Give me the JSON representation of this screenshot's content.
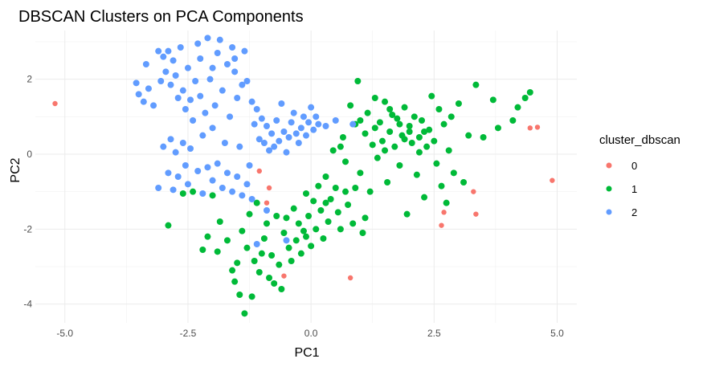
{
  "chart_data": {
    "type": "scatter",
    "title": "DBSCAN Clusters on PCA Components",
    "xlabel": "PC1",
    "ylabel": "PC2",
    "xlim": [
      -5.6,
      5.4
    ],
    "ylim": [
      -4.5,
      3.3
    ],
    "x_ticks": [
      -5.0,
      -2.5,
      0.0,
      2.5,
      5.0
    ],
    "x_tick_labels": [
      "-5.0",
      "-2.5",
      "0.0",
      "2.5",
      "5.0"
    ],
    "y_ticks": [
      -4,
      -2,
      0,
      2
    ],
    "y_tick_labels": [
      "-4",
      "-2",
      "0",
      "2"
    ],
    "grid": true,
    "legend": {
      "title": "cluster_dbscan",
      "position": "right"
    },
    "series": [
      {
        "name": "0",
        "color": "#F8766D",
        "points": [
          [
            -5.2,
            1.35
          ],
          [
            -1.05,
            -0.45
          ],
          [
            -0.85,
            -0.9
          ],
          [
            -0.9,
            -1.3
          ],
          [
            -0.55,
            -3.25
          ],
          [
            0.8,
            -3.3
          ],
          [
            2.65,
            -1.9
          ],
          [
            2.7,
            -1.55
          ],
          [
            3.3,
            -1.0
          ],
          [
            3.35,
            -1.6
          ],
          [
            4.45,
            0.7
          ],
          [
            4.6,
            0.72
          ],
          [
            4.9,
            -0.7
          ]
        ]
      },
      {
        "name": "1",
        "color": "#00BA38",
        "points": [
          [
            -2.9,
            -1.9
          ],
          [
            -2.6,
            -1.05
          ],
          [
            -2.4,
            -1.0
          ],
          [
            -2.2,
            -2.55
          ],
          [
            -2.1,
            -2.2
          ],
          [
            -2.0,
            -1.1
          ],
          [
            -1.9,
            -2.6
          ],
          [
            -1.85,
            -1.8
          ],
          [
            -1.7,
            -2.3
          ],
          [
            -1.6,
            -3.1
          ],
          [
            -1.55,
            -3.4
          ],
          [
            -1.5,
            -2.9
          ],
          [
            -1.45,
            -3.75
          ],
          [
            -1.4,
            -2.05
          ],
          [
            -1.35,
            -4.25
          ],
          [
            -1.3,
            -2.5
          ],
          [
            -1.25,
            -1.6
          ],
          [
            -1.2,
            -3.8
          ],
          [
            -1.15,
            -2.85
          ],
          [
            -1.1,
            -1.3
          ],
          [
            -1.05,
            -3.15
          ],
          [
            -1.0,
            -2.65
          ],
          [
            -0.95,
            -2.25
          ],
          [
            -0.9,
            -1.85
          ],
          [
            -0.85,
            -3.3
          ],
          [
            -0.8,
            -2.7
          ],
          [
            -0.75,
            -3.45
          ],
          [
            -0.7,
            -1.65
          ],
          [
            -0.65,
            -2.95
          ],
          [
            -0.6,
            -3.6
          ],
          [
            -0.55,
            -2.1
          ],
          [
            -0.5,
            -1.7
          ],
          [
            -0.45,
            -2.5
          ],
          [
            -0.4,
            -2.85
          ],
          [
            -0.35,
            -1.45
          ],
          [
            -0.3,
            -2.3
          ],
          [
            -0.25,
            -1.85
          ],
          [
            -0.2,
            -2.65
          ],
          [
            -0.15,
            -2.05
          ],
          [
            -0.1,
            -1.05
          ],
          [
            -0.05,
            -1.65
          ],
          [
            0.0,
            -2.45
          ],
          [
            0.05,
            -1.25
          ],
          [
            0.1,
            -2.0
          ],
          [
            0.15,
            -0.85
          ],
          [
            0.2,
            -1.5
          ],
          [
            0.25,
            -2.25
          ],
          [
            0.3,
            -0.6
          ],
          [
            0.35,
            -1.8
          ],
          [
            0.4,
            -1.2
          ],
          [
            0.45,
            0.1
          ],
          [
            0.5,
            -0.9
          ],
          [
            0.55,
            -1.55
          ],
          [
            0.6,
            -2.0
          ],
          [
            0.65,
            0.45
          ],
          [
            0.7,
            -0.2
          ],
          [
            0.75,
            -1.35
          ],
          [
            0.8,
            1.3
          ],
          [
            0.85,
            -1.85
          ],
          [
            0.9,
            0.8
          ],
          [
            0.95,
            1.95
          ],
          [
            1.0,
            -0.5
          ],
          [
            1.05,
            -2.1
          ],
          [
            1.1,
            0.55
          ],
          [
            1.15,
            1.1
          ],
          [
            1.2,
            -1.0
          ],
          [
            1.25,
            0.25
          ],
          [
            1.3,
            1.5
          ],
          [
            1.35,
            -0.1
          ],
          [
            1.4,
            0.85
          ],
          [
            1.45,
            0.35
          ],
          [
            1.5,
            1.4
          ],
          [
            1.55,
            -0.75
          ],
          [
            1.6,
            0.6
          ],
          [
            1.65,
            1.05
          ],
          [
            1.7,
            0.2
          ],
          [
            1.75,
            0.95
          ],
          [
            1.8,
            -0.3
          ],
          [
            1.85,
            0.5
          ],
          [
            1.9,
            1.25
          ],
          [
            1.95,
            -1.6
          ],
          [
            2.0,
            0.75
          ],
          [
            2.05,
            0.3
          ],
          [
            2.1,
            1.0
          ],
          [
            2.15,
            -0.55
          ],
          [
            2.2,
            0.45
          ],
          [
            2.25,
            0.9
          ],
          [
            2.3,
            -1.15
          ],
          [
            2.35,
            0.2
          ],
          [
            2.4,
            0.65
          ],
          [
            2.45,
            1.55
          ],
          [
            2.5,
            0.35
          ],
          [
            2.55,
            -0.25
          ],
          [
            2.6,
            1.2
          ],
          [
            2.65,
            -0.85
          ],
          [
            2.7,
            0.8
          ],
          [
            2.75,
            -1.3
          ],
          [
            2.8,
            0.1
          ],
          [
            2.85,
            1.0
          ],
          [
            2.9,
            -0.5
          ],
          [
            3.0,
            1.35
          ],
          [
            3.1,
            -0.75
          ],
          [
            3.2,
            0.5
          ],
          [
            3.35,
            1.85
          ],
          [
            3.5,
            0.45
          ],
          [
            3.7,
            1.45
          ],
          [
            3.8,
            0.7
          ],
          [
            4.1,
            0.9
          ],
          [
            4.2,
            1.25
          ],
          [
            4.35,
            1.5
          ],
          [
            4.45,
            1.65
          ],
          [
            0.6,
            0.2
          ],
          [
            1.0,
            0.9
          ],
          [
            1.3,
            0.7
          ],
          [
            1.6,
            1.2
          ],
          [
            1.9,
            0.4
          ],
          [
            2.2,
            0.05
          ],
          [
            2.0,
            0.6
          ],
          [
            1.8,
            0.8
          ],
          [
            2.3,
            0.6
          ],
          [
            1.5,
            0.1
          ],
          [
            0.7,
            -1.0
          ],
          [
            0.3,
            -1.3
          ],
          [
            -0.1,
            -2.2
          ],
          [
            1.1,
            -1.7
          ],
          [
            0.9,
            -0.9
          ]
        ]
      },
      {
        "name": "2",
        "color": "#619CFF",
        "points": [
          [
            -3.55,
            1.9
          ],
          [
            -3.5,
            1.6
          ],
          [
            -3.4,
            1.4
          ],
          [
            -3.3,
            1.75
          ],
          [
            -3.2,
            1.3
          ],
          [
            -3.1,
            2.75
          ],
          [
            -3.05,
            1.95
          ],
          [
            -3.0,
            2.6
          ],
          [
            -2.95,
            2.2
          ],
          [
            -2.9,
            2.75
          ],
          [
            -2.85,
            1.85
          ],
          [
            -2.8,
            2.5
          ],
          [
            -2.75,
            2.1
          ],
          [
            -2.7,
            1.5
          ],
          [
            -2.65,
            2.85
          ],
          [
            -2.6,
            1.7
          ],
          [
            -2.55,
            1.2
          ],
          [
            -2.5,
            2.3
          ],
          [
            -2.45,
            1.45
          ],
          [
            -2.4,
            0.9
          ],
          [
            -2.35,
            1.95
          ],
          [
            -2.3,
            2.95
          ],
          [
            -2.25,
            1.55
          ],
          [
            -2.2,
            0.5
          ],
          [
            -2.15,
            1.1
          ],
          [
            -2.1,
            3.1
          ],
          [
            -2.05,
            2.0
          ],
          [
            -2.0,
            0.7
          ],
          [
            -1.95,
            1.3
          ],
          [
            -1.9,
            2.7
          ],
          [
            -1.85,
            3.05
          ],
          [
            -1.8,
            1.7
          ],
          [
            -1.75,
            0.3
          ],
          [
            -1.7,
            2.4
          ],
          [
            -1.65,
            1.0
          ],
          [
            -1.6,
            2.85
          ],
          [
            -1.55,
            2.2
          ],
          [
            -1.5,
            1.5
          ],
          [
            -1.45,
            0.2
          ],
          [
            -1.4,
            1.85
          ],
          [
            -1.35,
            2.75
          ],
          [
            -1.3,
            1.95
          ],
          [
            -1.25,
            -0.3
          ],
          [
            -1.2,
            1.4
          ],
          [
            -1.15,
            0.8
          ],
          [
            -1.1,
            1.2
          ],
          [
            -1.05,
            0.4
          ],
          [
            -1.0,
            0.95
          ],
          [
            -0.95,
            0.3
          ],
          [
            -0.9,
            0.75
          ],
          [
            -0.85,
            0.1
          ],
          [
            -0.8,
            0.55
          ],
          [
            -0.75,
            0.2
          ],
          [
            -0.7,
            0.9
          ],
          [
            -0.65,
            0.35
          ],
          [
            -0.6,
            1.35
          ],
          [
            -0.55,
            0.6
          ],
          [
            -0.5,
            0.05
          ],
          [
            -0.45,
            0.45
          ],
          [
            -0.4,
            0.85
          ],
          [
            -0.35,
            1.1
          ],
          [
            -0.3,
            0.55
          ],
          [
            -0.25,
            0.3
          ],
          [
            -0.2,
            0.7
          ],
          [
            -0.15,
            1.0
          ],
          [
            -0.1,
            0.5
          ],
          [
            -0.05,
            0.85
          ],
          [
            0.0,
            1.25
          ],
          [
            0.05,
            0.65
          ],
          [
            0.1,
            1.0
          ],
          [
            0.15,
            0.8
          ],
          [
            0.3,
            0.75
          ],
          [
            0.5,
            0.9
          ],
          [
            0.85,
            0.8
          ],
          [
            -3.1,
            -0.9
          ],
          [
            -3.0,
            0.2
          ],
          [
            -2.9,
            -0.5
          ],
          [
            -2.85,
            0.4
          ],
          [
            -2.8,
            -0.95
          ],
          [
            -2.75,
            0.05
          ],
          [
            -2.7,
            -0.6
          ],
          [
            -2.6,
            0.3
          ],
          [
            -2.55,
            -0.3
          ],
          [
            -2.5,
            -0.8
          ],
          [
            -2.45,
            0.15
          ],
          [
            -2.3,
            -0.45
          ],
          [
            -2.2,
            -1.05
          ],
          [
            -2.1,
            -0.35
          ],
          [
            -2.0,
            -0.7
          ],
          [
            -1.9,
            -0.25
          ],
          [
            -1.8,
            -0.9
          ],
          [
            -1.7,
            -0.5
          ],
          [
            -1.6,
            -1.0
          ],
          [
            -1.5,
            -0.6
          ],
          [
            -1.4,
            -1.1
          ],
          [
            -1.3,
            -0.8
          ],
          [
            -1.2,
            -1.2
          ],
          [
            -1.1,
            -2.4
          ],
          [
            -0.9,
            -1.5
          ],
          [
            -0.5,
            -2.3
          ],
          [
            -3.35,
            2.4
          ],
          [
            -2.25,
            2.55
          ],
          [
            -1.55,
            2.55
          ],
          [
            -2.0,
            2.3
          ]
        ]
      }
    ]
  }
}
